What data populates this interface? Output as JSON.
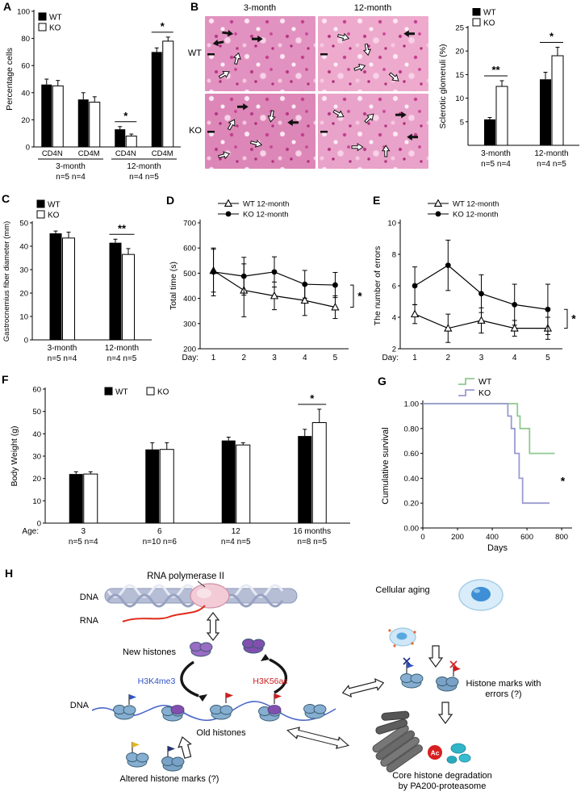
{
  "panels": {
    "a": {
      "label": "A"
    },
    "b": {
      "label": "B",
      "columns": [
        "3-month",
        "12-month"
      ],
      "rows": [
        "WT",
        "KO"
      ]
    },
    "c": {
      "label": "C"
    },
    "d": {
      "label": "D"
    },
    "e": {
      "label": "E"
    },
    "f": {
      "label": "F"
    },
    "g": {
      "label": "G"
    },
    "h": {
      "label": "H"
    }
  },
  "chart_data": [
    {
      "panel": "A",
      "type": "bar",
      "ylabel": "Percentage cells",
      "ylim": [
        0,
        100
      ],
      "yticks": [
        "0",
        "20",
        "40",
        "60",
        "80",
        "100"
      ],
      "series": [
        "WT",
        "KO"
      ],
      "categories": [
        "CD4N",
        "CD4M",
        "CD4N",
        "CD4M"
      ],
      "values": {
        "WT": [
          46,
          35,
          13,
          70
        ],
        "KO": [
          45,
          33,
          8,
          78
        ]
      },
      "errors": {
        "WT": [
          4,
          5,
          2,
          3
        ],
        "KO": [
          4,
          4,
          1.5,
          3
        ]
      },
      "sig": [
        "",
        "",
        "*",
        "*"
      ],
      "groups": [
        {
          "label": "3-month",
          "n": "n=5  n=4",
          "from": 0,
          "to": 1
        },
        {
          "label": "12-month",
          "n": "n=4  n=5",
          "from": 2,
          "to": 3
        }
      ],
      "layout": {
        "ml": 36,
        "mr": 6,
        "mt": 12,
        "mb": 48,
        "bw": 13,
        "lx": 42,
        "ly": 14,
        "ylx": 9
      }
    },
    {
      "panel": "B",
      "type": "bar",
      "ylabel": "Sclerotic glomeruli (%)",
      "ylim": [
        0,
        25
      ],
      "yticks": [
        "5",
        "10",
        "15",
        "20",
        "25"
      ],
      "series": [
        "WT",
        "KO"
      ],
      "categories": [
        "3-month",
        "12-month"
      ],
      "cat_n": [
        "n=5  n=4",
        "n=4  n=5"
      ],
      "values": {
        "WT": [
          5.5,
          14
        ],
        "KO": [
          12.5,
          19
        ]
      },
      "errors": {
        "WT": [
          0.4,
          1.5
        ],
        "KO": [
          1.2,
          1.8
        ]
      },
      "sig": [
        "**",
        "*"
      ],
      "layout": {
        "ml": 40,
        "mr": 6,
        "mt": 24,
        "mb": 42,
        "bw": 14,
        "lx": 46,
        "ly": 0,
        "ylx": 12
      }
    },
    {
      "panel": "C",
      "type": "bar",
      "ylabel": "Gastrocnemius fiber diameter (mm)",
      "ylim": [
        0,
        50
      ],
      "yticks": [
        "0",
        "10",
        "20",
        "30",
        "40",
        "50"
      ],
      "series": [
        "WT",
        "KO"
      ],
      "categories": [
        "3-month",
        "12-month"
      ],
      "cat_n": [
        "n=5  n=4",
        "n=4  n=5"
      ],
      "values": {
        "WT": [
          45.5,
          41.5
        ],
        "KO": [
          43.5,
          36.5
        ]
      },
      "errors": {
        "WT": [
          1,
          1.5
        ],
        "KO": [
          2.5,
          2.5
        ]
      },
      "sig": [
        "",
        "**"
      ],
      "layout": {
        "ml": 38,
        "mr": 12,
        "mt": 30,
        "mb": 40,
        "bw": 15,
        "lx": 44,
        "ly": 2,
        "ylx": 9,
        "ylfs": 9.5
      }
    },
    {
      "panel": "D",
      "type": "line",
      "ylabel": "Total time (s)",
      "ylim": [
        200,
        700
      ],
      "yticks": [
        "200",
        "300",
        "400",
        "500",
        "600",
        "700"
      ],
      "xprefix": "Day:",
      "x": [
        "1",
        "2",
        "3",
        "4",
        "5"
      ],
      "series": [
        {
          "name": "WT 12-month",
          "marker": "triangle",
          "values": [
            510,
            432,
            410,
            392,
            365
          ],
          "errors": [
            85,
            105,
            55,
            60,
            45
          ]
        },
        {
          "name": "KO 12-month",
          "marker": "circle",
          "values": [
            505,
            488,
            505,
            456,
            453
          ],
          "errors": [
            95,
            75,
            60,
            55,
            50
          ]
        }
      ],
      "sig": "*",
      "layout": {
        "ml": 42,
        "mr": 26,
        "mt": 30,
        "mb": 28,
        "lx": 64,
        "ly": 0,
        "ylx": 12
      }
    },
    {
      "panel": "E",
      "type": "line",
      "ylabel": "The number of errors",
      "ylim": [
        2,
        10
      ],
      "yticks": [
        "2",
        "4",
        "6",
        "8",
        "10"
      ],
      "xprefix": "Day:",
      "x": [
        "1",
        "2",
        "3",
        "4",
        "5"
      ],
      "series": [
        {
          "name": "WT 12-month",
          "marker": "triangle",
          "values": [
            4.2,
            3.3,
            3.8,
            3.3,
            3.3
          ],
          "errors": [
            0.6,
            0.9,
            0.8,
            0.5,
            0.7
          ]
        },
        {
          "name": "KO 12-month",
          "marker": "circle",
          "values": [
            6,
            7.3,
            5.5,
            4.8,
            4.5
          ],
          "errors": [
            1.2,
            1.6,
            1.2,
            1.3,
            1.6
          ]
        }
      ],
      "sig": "*",
      "layout": {
        "ml": 36,
        "mr": 28,
        "mt": 30,
        "mb": 28,
        "lx": 70,
        "ly": 0,
        "ylx": 11
      }
    },
    {
      "panel": "F",
      "type": "bar",
      "ylabel": "Body Weight (g)",
      "ylim": [
        0,
        60
      ],
      "yticks": [
        "0",
        "10",
        "20",
        "30",
        "40",
        "50",
        "60"
      ],
      "series": [
        "WT",
        "KO"
      ],
      "xprefix": "Age:",
      "categories": [
        "3",
        "6",
        "12",
        "16 months"
      ],
      "cat_n": [
        "n=5 n=4",
        "n=10 n=6",
        "n=4 n=5",
        "n=8 n=5"
      ],
      "values": {
        "WT": [
          22,
          33,
          37,
          39
        ],
        "KO": [
          22,
          33,
          35,
          45
        ]
      },
      "errors": {
        "WT": [
          1,
          3,
          1.5,
          3
        ],
        "KO": [
          1,
          3,
          1,
          6
        ]
      },
      "sig": [
        "",
        "",
        "",
        "*"
      ],
      "layout": {
        "ml": 48,
        "mr": 16,
        "mt": 16,
        "mb": 42,
        "bw": 17,
        "lx": 122,
        "ly": 14,
        "lh": true,
        "lsp": 52,
        "ylx": 13
      }
    },
    {
      "panel": "G",
      "type": "survival",
      "ylabel": "Cumulative survival",
      "xlabel": "Days",
      "ylim": [
        0,
        1
      ],
      "xlim": [
        0,
        860
      ],
      "yticks": [
        "0.00",
        "0.20",
        "0.40",
        "0.60",
        "0.80",
        "1.00"
      ],
      "xticks": [
        "0",
        "200",
        "400",
        "600",
        "800"
      ],
      "series": [
        {
          "name": "WT",
          "color": "#8fca8f",
          "points": [
            [
              0,
              1
            ],
            [
              545,
              1
            ],
            [
              545,
              0.9
            ],
            [
              560,
              0.9
            ],
            [
              560,
              0.8
            ],
            [
              615,
              0.8
            ],
            [
              615,
              0.6
            ],
            [
              760,
              0.6
            ]
          ]
        },
        {
          "name": "KO",
          "color": "#9a9ad0",
          "points": [
            [
              0,
              1
            ],
            [
              490,
              1
            ],
            [
              490,
              0.9
            ],
            [
              510,
              0.9
            ],
            [
              510,
              0.8
            ],
            [
              530,
              0.8
            ],
            [
              530,
              0.6
            ],
            [
              555,
              0.6
            ],
            [
              555,
              0.4
            ],
            [
              575,
              0.4
            ],
            [
              575,
              0.2
            ],
            [
              730,
              0.2
            ]
          ]
        }
      ],
      "sig": "*",
      "layout": {
        "ml": 56,
        "mr": 16,
        "mt": 34,
        "mb": 40,
        "lx": 100,
        "ly": 0,
        "ylx": 13
      }
    }
  ],
  "panel_h": {
    "rna_pol": "RNA polymerase II",
    "dna_top": "DNA",
    "rna": "RNA",
    "new_histones": "New histones",
    "h3k4me3": "H3K4me3",
    "h3k56ac": "H3K56ac",
    "dna_bottom": "DNA",
    "old_histones": "Old histones",
    "altered_marks": "Altered histone marks  (?)",
    "cellular_aging": "Cellular aging",
    "errors_line1": "Histone marks with",
    "errors_line2": "errors (?)",
    "degradation_line1": "Core histone degradation",
    "degradation_line2": "by PA200-proteasome",
    "ac": "Ac"
  }
}
